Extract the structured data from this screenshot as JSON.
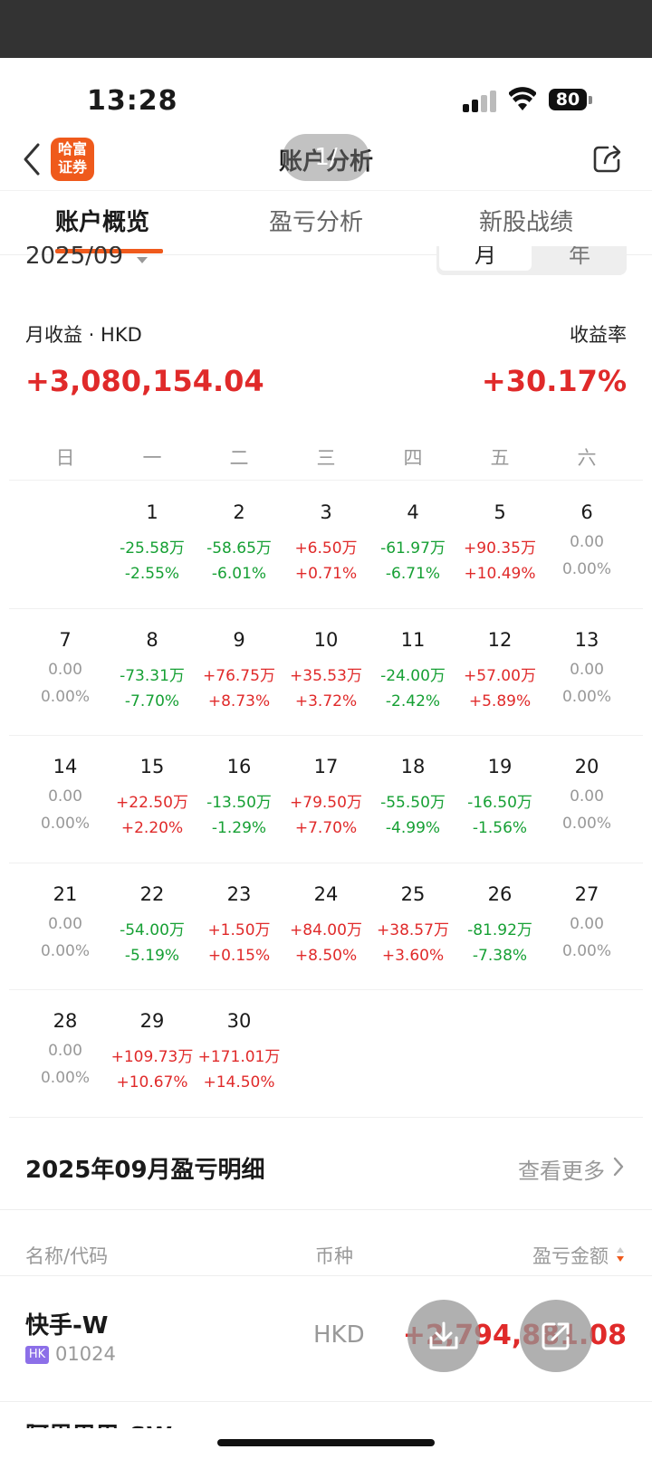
{
  "status_bar": {
    "time": "13:28",
    "battery": "80"
  },
  "nav": {
    "logo_line1": "哈富",
    "logo_line2": "证券",
    "title": "账户分析",
    "pager": "1/"
  },
  "tabs": [
    {
      "label": "账户概览",
      "active": true
    },
    {
      "label": "盈亏分析",
      "active": false
    },
    {
      "label": "新股战绩",
      "active": false
    }
  ],
  "period": {
    "month": "2025/09",
    "seg_month": "月",
    "seg_year": "年"
  },
  "summary": {
    "label": "月收益 · HKD",
    "value": "+3,080,154.04",
    "rate_label": "收益率",
    "rate_value": "+30.17%"
  },
  "weekdays": [
    "日",
    "一",
    "二",
    "三",
    "四",
    "五",
    "六"
  ],
  "calendar": [
    {
      "day": "1",
      "amount": "-25.58万",
      "pct": "-2.55%"
    },
    {
      "day": "2",
      "amount": "-58.65万",
      "pct": "-6.01%"
    },
    {
      "day": "3",
      "amount": "+6.50万",
      "pct": "+0.71%"
    },
    {
      "day": "4",
      "amount": "-61.97万",
      "pct": "-6.71%"
    },
    {
      "day": "5",
      "amount": "+90.35万",
      "pct": "+10.49%"
    },
    {
      "day": "6",
      "amount": "0.00",
      "pct": "0.00%"
    },
    {
      "day": "7",
      "amount": "0.00",
      "pct": "0.00%"
    },
    {
      "day": "8",
      "amount": "-73.31万",
      "pct": "-7.70%"
    },
    {
      "day": "9",
      "amount": "+76.75万",
      "pct": "+8.73%"
    },
    {
      "day": "10",
      "amount": "+35.53万",
      "pct": "+3.72%"
    },
    {
      "day": "11",
      "amount": "-24.00万",
      "pct": "-2.42%"
    },
    {
      "day": "12",
      "amount": "+57.00万",
      "pct": "+5.89%"
    },
    {
      "day": "13",
      "amount": "0.00",
      "pct": "0.00%"
    },
    {
      "day": "14",
      "amount": "0.00",
      "pct": "0.00%"
    },
    {
      "day": "15",
      "amount": "+22.50万",
      "pct": "+2.20%"
    },
    {
      "day": "16",
      "amount": "-13.50万",
      "pct": "-1.29%"
    },
    {
      "day": "17",
      "amount": "+79.50万",
      "pct": "+7.70%"
    },
    {
      "day": "18",
      "amount": "-55.50万",
      "pct": "-4.99%"
    },
    {
      "day": "19",
      "amount": "-16.50万",
      "pct": "-1.56%"
    },
    {
      "day": "20",
      "amount": "0.00",
      "pct": "0.00%"
    },
    {
      "day": "21",
      "amount": "0.00",
      "pct": "0.00%"
    },
    {
      "day": "22",
      "amount": "-54.00万",
      "pct": "-5.19%"
    },
    {
      "day": "23",
      "amount": "+1.50万",
      "pct": "+0.15%"
    },
    {
      "day": "24",
      "amount": "+84.00万",
      "pct": "+8.50%"
    },
    {
      "day": "25",
      "amount": "+38.57万",
      "pct": "+3.60%"
    },
    {
      "day": "26",
      "amount": "-81.92万",
      "pct": "-7.38%"
    },
    {
      "day": "27",
      "amount": "0.00",
      "pct": "0.00%"
    },
    {
      "day": "28",
      "amount": "0.00",
      "pct": "0.00%"
    },
    {
      "day": "29",
      "amount": "+109.73万",
      "pct": "+10.67%"
    },
    {
      "day": "30",
      "amount": "+171.01万",
      "pct": "+14.50%"
    }
  ],
  "detail": {
    "title": "2025年09月盈亏明细",
    "more": "查看更多",
    "col_name": "名称/代码",
    "col_currency": "币种",
    "col_pl": "盈亏金额",
    "rows": [
      {
        "name": "快手-W",
        "market": "HK",
        "code": "01024",
        "currency": "HKD",
        "pl": "+2,794,881.08"
      }
    ],
    "next_row_name": "阿里巴巴-SW"
  },
  "colors": {
    "positive": "#e02a2a",
    "negative": "#16a034",
    "neutral": "#999999",
    "accent": "#ef5a1c"
  },
  "icons": [
    "back-arrow-icon",
    "share-icon",
    "chevron-right-icon",
    "sort-icon",
    "download-icon",
    "export-icon"
  ]
}
